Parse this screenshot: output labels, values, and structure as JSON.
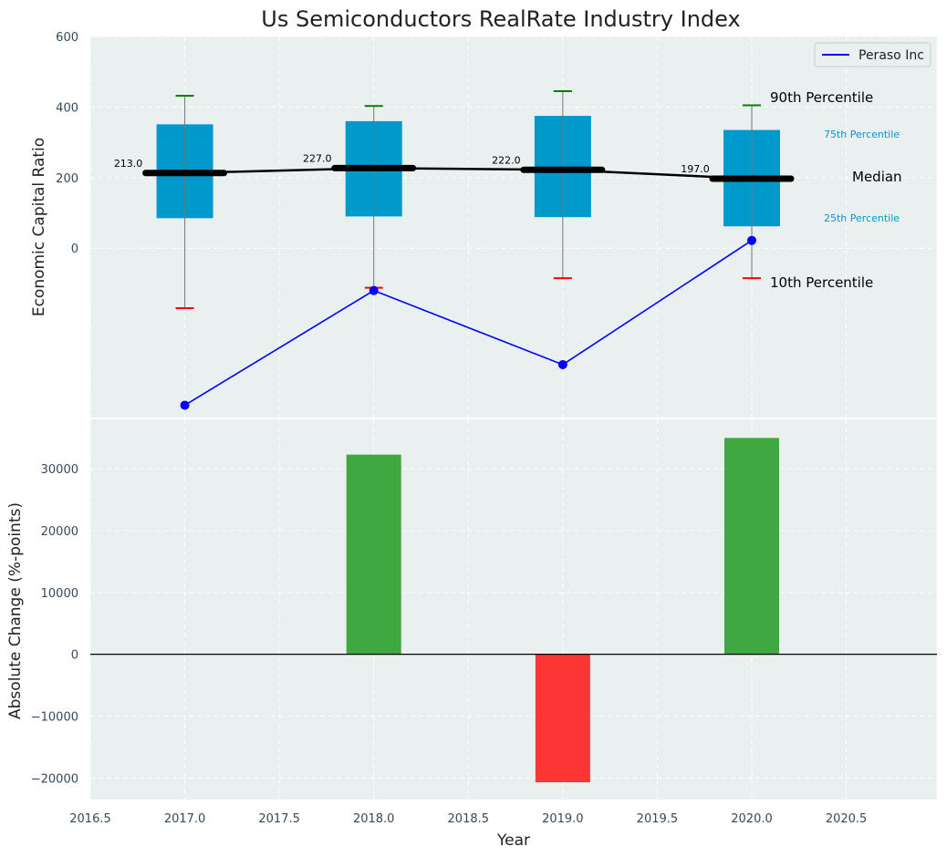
{
  "chart_data": [
    {
      "type": "box",
      "title": "Us Semiconductors RealRate Industry Index",
      "ylabel": "Economic Capital Ratio",
      "xlim": [
        2016.5,
        2020.98
      ],
      "ylim": [
        -480,
        600
      ],
      "y_ticks": [
        0,
        200,
        400,
        600
      ],
      "x": [
        2017.0,
        2018.0,
        2019.0,
        2020.0
      ],
      "p90": [
        432,
        403,
        445,
        405
      ],
      "p75": [
        351,
        360,
        375,
        335
      ],
      "median": [
        213,
        227,
        222,
        197
      ],
      "p25": [
        85,
        90,
        88,
        62
      ],
      "p10": [
        -170,
        -112,
        -85,
        -85
      ],
      "median_labels": [
        "213.0",
        "227.0",
        "222.0",
        "197.0"
      ],
      "series": [
        {
          "name": "Peraso Inc",
          "color": "#0000ff",
          "values": [
            -445,
            -120,
            -330,
            22
          ]
        }
      ],
      "percentile_labels": {
        "p90": "90th Percentile",
        "p75": "75th Percentile",
        "median": "Median",
        "p25": "25th Percentile",
        "p10": "10th Percentile"
      },
      "grid": true,
      "legend_position": "top-right"
    },
    {
      "type": "bar",
      "xlabel": "Year",
      "ylabel": "Absolute Change (%-points)",
      "xlim": [
        2016.5,
        2020.98
      ],
      "ylim": [
        -23500,
        38000
      ],
      "y_ticks": [
        -20000,
        -10000,
        0,
        10000,
        20000,
        30000
      ],
      "y_tick_labels": [
        "−20000",
        "−10000",
        "0",
        "10000",
        "20000",
        "30000"
      ],
      "x_ticks": [
        2016.5,
        2017.0,
        2017.5,
        2018.0,
        2018.5,
        2019.0,
        2019.5,
        2020.0,
        2020.5
      ],
      "x_tick_labels": [
        "2016.5",
        "2017.0",
        "2017.5",
        "2018.0",
        "2018.5",
        "2019.0",
        "2019.5",
        "2020.0",
        "2020.5"
      ],
      "x": [
        2018.0,
        2019.0,
        2020.0
      ],
      "values": [
        32300,
        -20700,
        35000
      ],
      "positive_color": "#2ca02c",
      "negative_color": "#ff2020",
      "grid": true
    }
  ],
  "colors": {
    "plot_bg": "#eaeff0",
    "box_fill": "#0099cc",
    "p90_cap": "#008000",
    "p10_cap": "#ff0000",
    "median_line": "#000000"
  }
}
